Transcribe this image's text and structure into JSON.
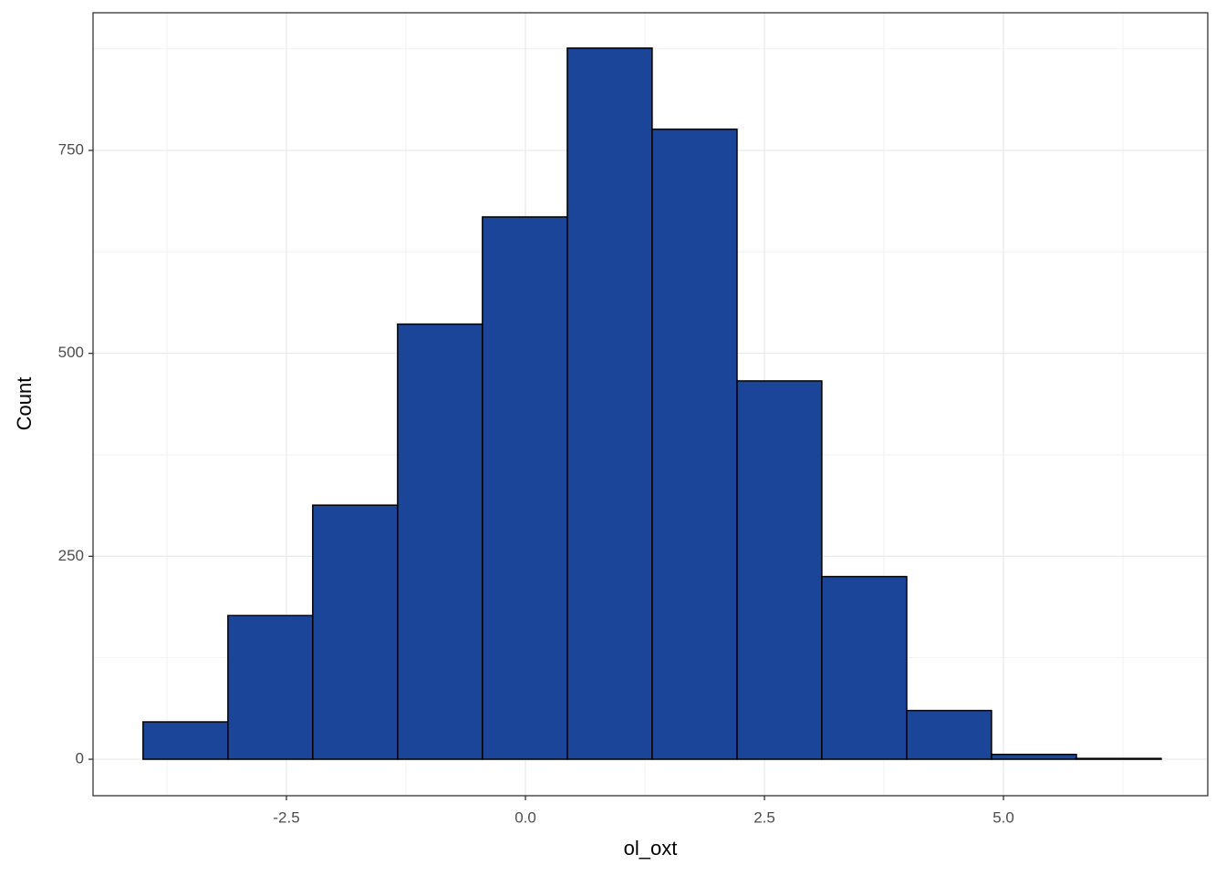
{
  "chart_data": {
    "type": "histogram",
    "x_label": "ol_oxt",
    "y_label": "Count",
    "bins": [
      -4.0,
      -3.112,
      -2.225,
      -1.337,
      -0.45,
      0.438,
      1.325,
      2.213,
      3.1,
      3.988,
      4.875,
      5.763,
      6.65
    ],
    "values": [
      46,
      177,
      313,
      536,
      668,
      876,
      776,
      466,
      225,
      60,
      6,
      1
    ],
    "color": "#1a4599",
    "edge_color": "#000000",
    "xlim": [
      -4.523,
      7.137
    ],
    "ylim": [
      -44.9,
      919.5
    ],
    "xticks": [
      -2.5,
      {
        "value": 0,
        "label": "0.0"
      },
      2.5,
      {
        "value": 5,
        "label": "5.0"
      }
    ],
    "yticks": [
      0,
      250,
      500,
      750
    ],
    "grid": true
  }
}
